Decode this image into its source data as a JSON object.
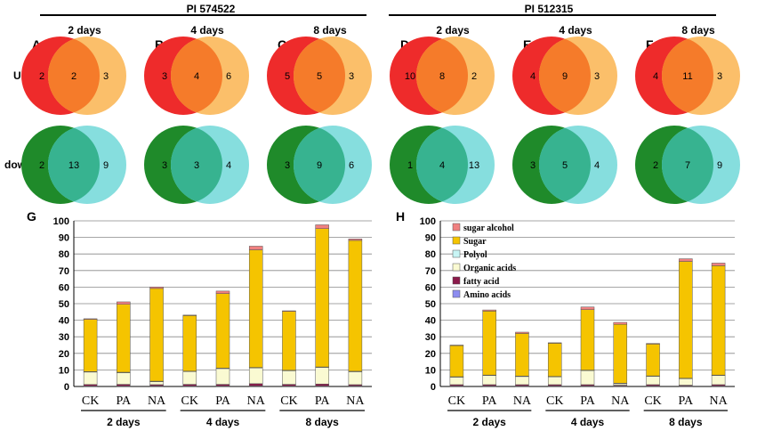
{
  "colors": {
    "up_a": "#ee2b2b",
    "up_b": "#fbbf6a",
    "up_overlap": "#f57b2a",
    "down_a": "#1f8a2a",
    "down_b": "#86dede",
    "down_overlap": "#37b390",
    "sugar_alcohol": "#f08080",
    "sugar": "#f5c400",
    "polyol": "#c8f5f5",
    "organic_acids": "#fafad2",
    "fatty_acid": "#8b1a4a",
    "amino_acids": "#8c8cf0"
  },
  "headers": {
    "left": "PI 574522",
    "right": "PI 512315"
  },
  "row_labels": {
    "up": "UP",
    "down": "down"
  },
  "venn_panels": [
    {
      "letter": "A",
      "day": "2 days",
      "up": [
        2,
        2,
        3
      ],
      "down": [
        2,
        13,
        9
      ]
    },
    {
      "letter": "B",
      "day": "4 days",
      "up": [
        3,
        4,
        6
      ],
      "down": [
        3,
        3,
        4
      ]
    },
    {
      "letter": "C",
      "day": "8 days",
      "up": [
        5,
        5,
        3
      ],
      "down": [
        3,
        9,
        6
      ]
    },
    {
      "letter": "D",
      "day": "2 days",
      "up": [
        10,
        8,
        2
      ],
      "down": [
        1,
        4,
        13
      ]
    },
    {
      "letter": "E",
      "day": "4 days",
      "up": [
        4,
        9,
        3
      ],
      "down": [
        3,
        5,
        4
      ]
    },
    {
      "letter": "F",
      "day": "8 days",
      "up": [
        4,
        11,
        3
      ],
      "down": [
        2,
        7,
        9
      ]
    }
  ],
  "chart_data": [
    {
      "panel": "G",
      "type": "stacked-bar",
      "ylim": [
        0,
        100
      ],
      "yticks": [
        0,
        10,
        20,
        30,
        40,
        50,
        60,
        70,
        80,
        90,
        100
      ],
      "categories": [
        "CK",
        "PA",
        "NA",
        "CK",
        "PA",
        "NA",
        "CK",
        "PA",
        "NA"
      ],
      "groups": [
        "2 days",
        "4 days",
        "8 days"
      ],
      "series": [
        {
          "name": "Amino acids",
          "values": [
            0.3,
            0.3,
            0.3,
            0.3,
            0.3,
            0.3,
            0.3,
            0.3,
            0.3
          ]
        },
        {
          "name": "fatty acid",
          "values": [
            0.9,
            1.0,
            0.8,
            1.0,
            1.0,
            1.4,
            1.0,
            1.2,
            0.8
          ]
        },
        {
          "name": "Organic acids",
          "values": [
            7.5,
            7.0,
            1.8,
            7.7,
            9.5,
            9.5,
            8.2,
            10.0,
            7.8
          ]
        },
        {
          "name": "Polyol",
          "values": [
            0.3,
            0.3,
            0.3,
            0.3,
            0.3,
            0.3,
            0.3,
            0.3,
            0.3
          ]
        },
        {
          "name": "Sugar",
          "values": [
            31.5,
            41.0,
            56.0,
            33.5,
            45.0,
            71.0,
            35.5,
            83.5,
            79.0
          ]
        },
        {
          "name": "sugar alcohol",
          "values": [
            0.4,
            1.5,
            0.9,
            0.3,
            1.5,
            2.2,
            0.4,
            2.3,
            0.9
          ]
        }
      ]
    },
    {
      "panel": "H",
      "type": "stacked-bar",
      "ylim": [
        0,
        100
      ],
      "yticks": [
        0,
        10,
        20,
        30,
        40,
        50,
        60,
        70,
        80,
        90,
        100
      ],
      "categories": [
        "CK",
        "PA",
        "NA",
        "CK",
        "PA",
        "NA",
        "CK",
        "PA",
        "NA"
      ],
      "groups": [
        "2 days",
        "4 days",
        "8 days"
      ],
      "series": [
        {
          "name": "Amino acids",
          "values": [
            0.3,
            0.3,
            0.3,
            0.3,
            0.3,
            0.3,
            0.3,
            0.3,
            0.3
          ]
        },
        {
          "name": "fatty acid",
          "values": [
            0.8,
            0.8,
            0.8,
            0.8,
            0.8,
            0.5,
            0.8,
            0.5,
            0.8
          ]
        },
        {
          "name": "Organic acids",
          "values": [
            4.5,
            5.5,
            4.9,
            4.7,
            8.5,
            0.9,
            5.0,
            3.9,
            5.5
          ]
        },
        {
          "name": "Polyol",
          "values": [
            0.3,
            0.3,
            0.3,
            0.3,
            0.3,
            0.3,
            0.3,
            0.3,
            0.3
          ]
        },
        {
          "name": "Sugar",
          "values": [
            18.8,
            38.6,
            25.7,
            20.0,
            36.5,
            35.5,
            19.2,
            70.5,
            66.0
          ]
        },
        {
          "name": "sugar alcohol",
          "values": [
            0.3,
            0.7,
            0.8,
            0.3,
            1.6,
            1.2,
            0.4,
            1.6,
            1.6
          ]
        }
      ],
      "legend": [
        "sugar alcohol",
        "Sugar",
        "Polyol",
        "Organic acids",
        "fatty acid",
        "Amino acids"
      ]
    }
  ]
}
